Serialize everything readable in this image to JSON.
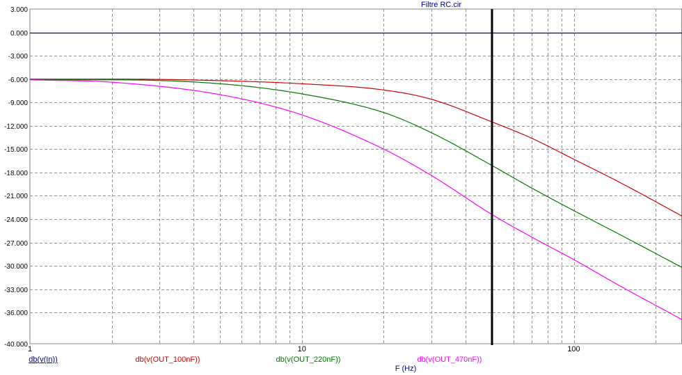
{
  "window": {
    "title": "Filtre RC.cir"
  },
  "chart_data": {
    "type": "line",
    "title": "Filtre RC.cir",
    "xlabel": "F (Hz)",
    "ylabel": "",
    "xscale": "log",
    "xlim": [
      1,
      250
    ],
    "ylim": [
      -40,
      3
    ],
    "grid": true,
    "x_ticks": [
      1,
      10,
      100
    ],
    "y_ticks": [
      3.0,
      0.0,
      -3.0,
      -6.0,
      -9.0,
      -12.0,
      -15.0,
      -18.0,
      -21.0,
      -24.0,
      -27.0,
      -30.0,
      -33.0,
      -36.0,
      -40.0
    ],
    "y_tick_labels": [
      "3.000",
      "0.000",
      "-3.000",
      "-6.000",
      "-9.000",
      "-12.000",
      "-15.000",
      "-18.000",
      "-21.000",
      "-24.000",
      "-27.000",
      "-30.000",
      "-33.000",
      "-36.000",
      "-40.000"
    ],
    "cursor_x": 50,
    "legend_position": "bottom",
    "series": [
      {
        "name": "db(v(In))",
        "color": "#000080",
        "x": [
          1,
          250
        ],
        "y": [
          0,
          0
        ]
      },
      {
        "name": "db(v(OUT_100nF))",
        "color": "#cc0000",
        "x": [
          1,
          2,
          5,
          10,
          20,
          30,
          50,
          70,
          100,
          150,
          250
        ],
        "y": [
          -6.0,
          -6.0,
          -6.2,
          -6.6,
          -7.4,
          -8.6,
          -11.5,
          -13.6,
          -16.3,
          -19.4,
          -23.6
        ]
      },
      {
        "name": "db(v(OUT_220nF))",
        "color": "#007700",
        "x": [
          1,
          2,
          5,
          10,
          20,
          30,
          50,
          70,
          100,
          150,
          250
        ],
        "y": [
          -6.1,
          -6.1,
          -6.6,
          -7.9,
          -10.3,
          -12.9,
          -17.1,
          -20.0,
          -22.9,
          -26.1,
          -30.2
        ]
      },
      {
        "name": "db(v(OUT_470nF))",
        "color": "#ff00ff",
        "x": [
          1,
          2,
          5,
          10,
          20,
          30,
          50,
          70,
          100,
          150,
          250
        ],
        "y": [
          -6.1,
          -6.4,
          -8.0,
          -10.6,
          -15.0,
          -18.4,
          -23.4,
          -26.3,
          -29.2,
          -32.7,
          -36.9
        ]
      }
    ]
  }
}
